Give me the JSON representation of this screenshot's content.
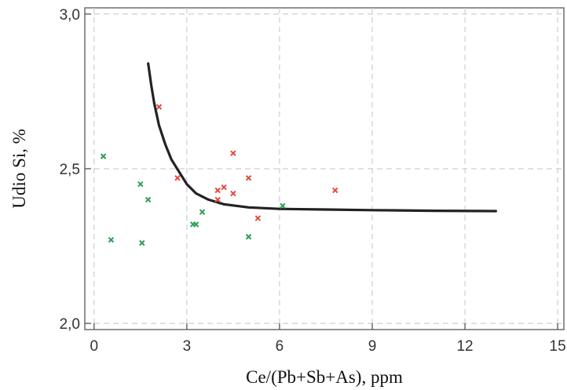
{
  "chart_data": {
    "type": "scatter",
    "xlabel": "Ce/(Pb+Sb+As), ppm",
    "ylabel": "Udio Si, %",
    "xlim": [
      -0.3,
      15.2
    ],
    "ylim": [
      1.98,
      3.02
    ],
    "xticks": [
      0,
      3,
      6,
      9,
      12,
      15
    ],
    "xtick_labels": [
      "0",
      "3",
      "6",
      "9",
      "12",
      "15"
    ],
    "yticks": [
      2.0,
      2.5,
      3.0
    ],
    "ytick_labels": [
      "2,0",
      "2,5",
      "3,0"
    ],
    "grid": true,
    "grid_style": "dashed",
    "series": [
      {
        "color": "#e04a3f",
        "marker": "x",
        "points": [
          [
            2.1,
            2.7
          ],
          [
            2.7,
            2.47
          ],
          [
            4.0,
            2.4
          ],
          [
            4.0,
            2.43
          ],
          [
            4.2,
            2.44
          ],
          [
            4.5,
            2.55
          ],
          [
            4.5,
            2.42
          ],
          [
            5.0,
            2.47
          ],
          [
            5.3,
            2.34
          ],
          [
            7.8,
            2.43
          ]
        ]
      },
      {
        "color": "#2e9e57",
        "marker": "x",
        "points": [
          [
            0.3,
            2.54
          ],
          [
            0.55,
            2.27
          ],
          [
            1.5,
            2.45
          ],
          [
            1.55,
            2.26
          ],
          [
            1.75,
            2.4
          ],
          [
            3.2,
            2.32
          ],
          [
            3.3,
            2.32
          ],
          [
            3.5,
            2.36
          ],
          [
            5.0,
            2.28
          ],
          [
            6.1,
            2.38
          ]
        ]
      }
    ],
    "fit_curve": {
      "color": "#222222",
      "x": [
        1.75,
        1.85,
        1.95,
        2.1,
        2.3,
        2.5,
        2.75,
        3.0,
        3.3,
        3.7,
        4.2,
        5.0,
        6.0,
        7.5,
        9.0,
        11.0,
        13.0
      ],
      "y": [
        2.84,
        2.77,
        2.71,
        2.64,
        2.58,
        2.53,
        2.49,
        2.45,
        2.42,
        2.4,
        2.385,
        2.375,
        2.37,
        2.368,
        2.366,
        2.364,
        2.363
      ]
    }
  }
}
